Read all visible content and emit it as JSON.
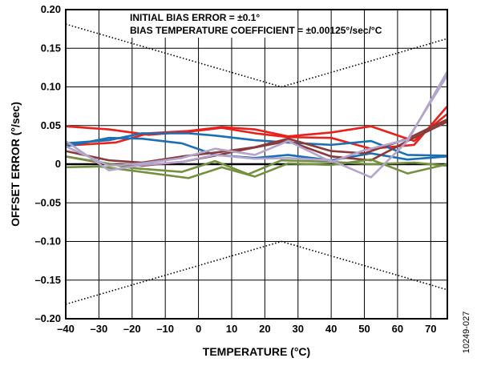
{
  "chart_data": {
    "type": "line",
    "title": "",
    "xlabel": "TEMPERATURE (°C)",
    "ylabel": "OFFSET ERROR (°/sec)",
    "xlim": [
      -40,
      75
    ],
    "ylim": [
      -0.2,
      0.2
    ],
    "x_ticks": [
      -40,
      -30,
      -20,
      -10,
      0,
      10,
      20,
      30,
      40,
      50,
      60,
      70
    ],
    "x_tick_labels": [
      "–40",
      "–30",
      "–20",
      "–10",
      "0",
      "10",
      "20",
      "30",
      "40",
      "50",
      "60",
      "70"
    ],
    "y_ticks": [
      0.2,
      0.15,
      0.1,
      0.05,
      0,
      -0.05,
      -0.1,
      -0.15,
      -0.2
    ],
    "y_tick_labels": [
      "0.20",
      "0.15",
      "0.10",
      "0.05",
      "0",
      "–0.05",
      "–0.10",
      "–0.15",
      "–0.20"
    ],
    "grid": true,
    "annotations": [
      "INITIAL BIAS ERROR = ±0.1°",
      "BIAS TEMPERATURE COEFFICIENT = ±0.00125°/sec/°C"
    ],
    "figure_id": "10249-027",
    "limit_lines": [
      {
        "style": "dotted",
        "color": "#000000",
        "x": [
          -40,
          25,
          75
        ],
        "y": [
          0.18125,
          0.1,
          0.1625
        ]
      },
      {
        "style": "dotted",
        "color": "#000000",
        "x": [
          -40,
          25,
          75
        ],
        "y": [
          -0.18125,
          -0.1,
          -0.1625
        ]
      }
    ],
    "series": [
      {
        "color": "#e8211c",
        "x": [
          -40,
          -27,
          -15,
          -3,
          7,
          17,
          27,
          40,
          52,
          65,
          75
        ],
        "y": [
          0.049,
          0.045,
          0.038,
          0.042,
          0.047,
          0.04,
          0.035,
          0.034,
          0.02,
          0.025,
          0.075
        ]
      },
      {
        "color": "#e8211c",
        "x": [
          -40,
          -25,
          -15,
          -3,
          7,
          17,
          27,
          40,
          52,
          65,
          75
        ],
        "y": [
          0.024,
          0.028,
          0.04,
          0.043,
          0.048,
          0.045,
          0.036,
          0.041,
          0.049,
          0.03,
          0.065
        ]
      },
      {
        "color": "#1a6fb5",
        "x": [
          -40,
          -27,
          -17,
          -3,
          5,
          17,
          27,
          40,
          52,
          63,
          75
        ],
        "y": [
          0.027,
          0.031,
          0.04,
          0.04,
          0.037,
          0.031,
          0.028,
          0.025,
          0.03,
          0.012,
          0.011
        ]
      },
      {
        "color": "#1a6fb5",
        "x": [
          -40,
          -27,
          -17,
          -5,
          5,
          17,
          27,
          40,
          52,
          63,
          75
        ],
        "y": [
          0.023,
          0.034,
          0.033,
          0.027,
          0.012,
          0.008,
          0.012,
          0.005,
          0.014,
          0.006,
          0.01
        ]
      },
      {
        "color": "#8b3a3a",
        "x": [
          -40,
          -27,
          -17,
          -5,
          5,
          17,
          27,
          40,
          50,
          63,
          75
        ],
        "y": [
          0.017,
          0.005,
          0.002,
          0.01,
          0.015,
          0.022,
          0.033,
          0.017,
          0.014,
          0.033,
          0.058
        ]
      },
      {
        "color": "#8b3a3a",
        "x": [
          -40,
          -27,
          -17,
          -5,
          5,
          15,
          27,
          40,
          52,
          63,
          75
        ],
        "y": [
          0.01,
          0.0,
          -0.002,
          0.003,
          0.011,
          0.02,
          0.03,
          0.01,
          0.005,
          0.03,
          0.055
        ]
      },
      {
        "color": "#73913e",
        "x": [
          -40,
          -30,
          -20,
          -5,
          5,
          15,
          25,
          40,
          52,
          65,
          75
        ],
        "y": [
          0.01,
          0.003,
          -0.005,
          -0.01,
          0.004,
          -0.013,
          0.005,
          0.003,
          0.0,
          0.002,
          -0.002
        ]
      },
      {
        "color": "#73913e",
        "x": [
          -40,
          -30,
          -17,
          -3,
          7,
          17,
          27,
          40,
          52,
          63,
          75
        ],
        "y": [
          -0.004,
          -0.003,
          -0.01,
          -0.018,
          -0.004,
          -0.016,
          0.001,
          -0.001,
          0.006,
          -0.012,
          0.0
        ]
      },
      {
        "color": "#b3a5cc",
        "x": [
          -40,
          -27,
          -17,
          -5,
          5,
          17,
          27,
          40,
          52,
          63,
          75
        ],
        "y": [
          0.03,
          -0.008,
          -0.001,
          0.003,
          0.012,
          0.007,
          0.008,
          0.005,
          -0.017,
          0.03,
          0.12
        ]
      },
      {
        "color": "#b3a5cc",
        "x": [
          -40,
          -27,
          -17,
          -5,
          5,
          17,
          27,
          40,
          50,
          63,
          75
        ],
        "y": [
          0.023,
          -0.002,
          0.001,
          0.008,
          0.02,
          0.012,
          0.03,
          0.003,
          0.018,
          0.032,
          0.115
        ]
      }
    ]
  }
}
